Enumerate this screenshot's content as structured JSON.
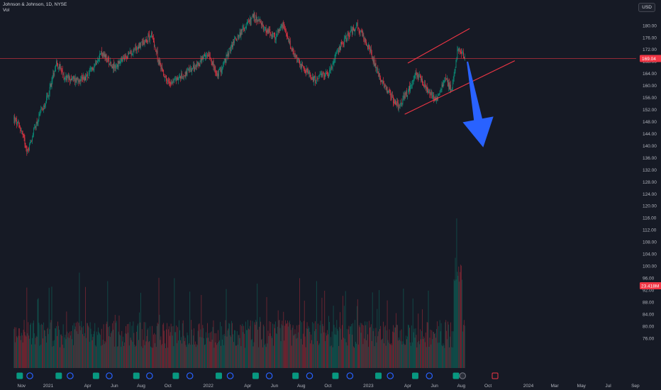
{
  "header": {
    "symbol_line": "Johnson & Johnson, 1D, NYSE",
    "vol_label": "Vol"
  },
  "currency_button": "USD",
  "chart_data": {
    "type": "candlestick",
    "title": "Johnson & Johnson, 1D, NYSE",
    "currency": "USD",
    "price_axis": {
      "range": [
        74,
        186
      ],
      "ticks": [
        180,
        176,
        172,
        168,
        164,
        160,
        156,
        152,
        148,
        144,
        140,
        136,
        132,
        128,
        124,
        120,
        116,
        112,
        108,
        104,
        100,
        96,
        92,
        88,
        84,
        80,
        76
      ],
      "tick_labels": [
        "180.00",
        "176.00",
        "172.00",
        "168.00",
        "164.00",
        "160.00",
        "156.00",
        "152.00",
        "148.00",
        "144.00",
        "140.00",
        "136.00",
        "132.00",
        "128.00",
        "124.00",
        "120.00",
        "116.00",
        "112.00",
        "108.00",
        "104.00",
        "100.00",
        "96.00",
        "92.00",
        "88.00",
        "84.00",
        "80.00",
        "76.00"
      ]
    },
    "time_axis": {
      "labels": [
        "Nov",
        "2021",
        "Apr",
        "Jun",
        "Aug",
        "Oct",
        "2022",
        "Apr",
        "Jun",
        "Aug",
        "Oct",
        "2023",
        "Apr",
        "Jun",
        "Aug",
        "Oct",
        "2024",
        "Mar",
        "May",
        "Jul",
        "Sep"
      ]
    },
    "price_path": [
      [
        "2020-10-15",
        149
      ],
      [
        "2020-11-01",
        145
      ],
      [
        "2020-11-15",
        138
      ],
      [
        "2020-12-01",
        146
      ],
      [
        "2021-01-01",
        157
      ],
      [
        "2021-01-20",
        168
      ],
      [
        "2021-02-05",
        163
      ],
      [
        "2021-03-01",
        162
      ],
      [
        "2021-04-01",
        163
      ],
      [
        "2021-05-01",
        171
      ],
      [
        "2021-06-01",
        166
      ],
      [
        "2021-07-01",
        170
      ],
      [
        "2021-08-01",
        174
      ],
      [
        "2021-08-25",
        177
      ],
      [
        "2021-09-10",
        168
      ],
      [
        "2021-10-01",
        161
      ],
      [
        "2021-11-01",
        163
      ],
      [
        "2021-12-01",
        166
      ],
      [
        "2022-01-03",
        171
      ],
      [
        "2022-01-20",
        163
      ],
      [
        "2022-02-01",
        166
      ],
      [
        "2022-03-01",
        175
      ],
      [
        "2022-04-15",
        183
      ],
      [
        "2022-05-10",
        179
      ],
      [
        "2022-06-01",
        176
      ],
      [
        "2022-06-20",
        180
      ],
      [
        "2022-07-15",
        170
      ],
      [
        "2022-08-10",
        165
      ],
      [
        "2022-09-01",
        162
      ],
      [
        "2022-10-01",
        164
      ],
      [
        "2022-11-01",
        174
      ],
      [
        "2022-12-05",
        180
      ],
      [
        "2023-01-01",
        173
      ],
      [
        "2023-02-01",
        161
      ],
      [
        "2023-03-10",
        153
      ],
      [
        "2023-04-01",
        158
      ],
      [
        "2023-04-20",
        164
      ],
      [
        "2023-05-15",
        159
      ],
      [
        "2023-06-05",
        155
      ],
      [
        "2023-06-25",
        163
      ],
      [
        "2023-07-10",
        158
      ],
      [
        "2023-07-25",
        173
      ],
      [
        "2023-08-10",
        169
      ]
    ],
    "last_price": "169.04",
    "volume_tag": "23.418M",
    "drawings": [
      {
        "type": "trend-line",
        "color": "#f23645",
        "from": [
          "2023-04-01",
          167.5
        ],
        "to": [
          "2023-08-20",
          179
        ]
      },
      {
        "type": "trend-line",
        "color": "#f23645",
        "from": [
          "2023-03-25",
          150.5
        ],
        "to": [
          "2023-12-01",
          168.3
        ]
      },
      {
        "type": "arrow",
        "color": "#2962ff",
        "from": [
          "2023-08-15",
          168
        ],
        "to": [
          "2023-09-20",
          139.5
        ],
        "direction": "down"
      }
    ],
    "event_markers": [
      {
        "date": "2020-10-28",
        "kind": "E",
        "color": "#089981"
      },
      {
        "date": "2020-11-20",
        "kind": "D",
        "color": "#2962ff"
      },
      {
        "date": "2021-01-25",
        "kind": "E",
        "color": "#089981"
      },
      {
        "date": "2021-02-20",
        "kind": "D",
        "color": "#2962ff"
      },
      {
        "date": "2021-04-20",
        "kind": "E",
        "color": "#089981"
      },
      {
        "date": "2021-05-20",
        "kind": "D",
        "color": "#2962ff"
      },
      {
        "date": "2021-07-21",
        "kind": "E",
        "color": "#089981"
      },
      {
        "date": "2021-08-20",
        "kind": "D",
        "color": "#2962ff"
      },
      {
        "date": "2021-10-19",
        "kind": "E",
        "color": "#089981"
      },
      {
        "date": "2021-11-20",
        "kind": "D",
        "color": "#2962ff"
      },
      {
        "date": "2022-01-25",
        "kind": "E",
        "color": "#089981"
      },
      {
        "date": "2022-02-20",
        "kind": "D",
        "color": "#2962ff"
      },
      {
        "date": "2022-04-19",
        "kind": "E",
        "color": "#089981"
      },
      {
        "date": "2022-05-20",
        "kind": "D",
        "color": "#2962ff"
      },
      {
        "date": "2022-07-19",
        "kind": "E",
        "color": "#089981"
      },
      {
        "date": "2022-08-20",
        "kind": "D",
        "color": "#2962ff"
      },
      {
        "date": "2022-10-18",
        "kind": "E",
        "color": "#089981"
      },
      {
        "date": "2022-11-20",
        "kind": "D",
        "color": "#2962ff"
      },
      {
        "date": "2023-01-24",
        "kind": "E",
        "color": "#089981"
      },
      {
        "date": "2023-02-20",
        "kind": "D",
        "color": "#2962ff"
      },
      {
        "date": "2023-04-18",
        "kind": "E",
        "color": "#089981"
      },
      {
        "date": "2023-05-20",
        "kind": "D",
        "color": "#2962ff"
      },
      {
        "date": "2023-07-20",
        "kind": "E",
        "color": "#089981"
      },
      {
        "date": "2023-08-04",
        "kind": "S",
        "color": "#787b86"
      },
      {
        "date": "2023-10-17",
        "kind": "E",
        "color": "#f23645"
      }
    ],
    "up_color": "#089981",
    "down_color": "#f23645",
    "grid": false
  }
}
